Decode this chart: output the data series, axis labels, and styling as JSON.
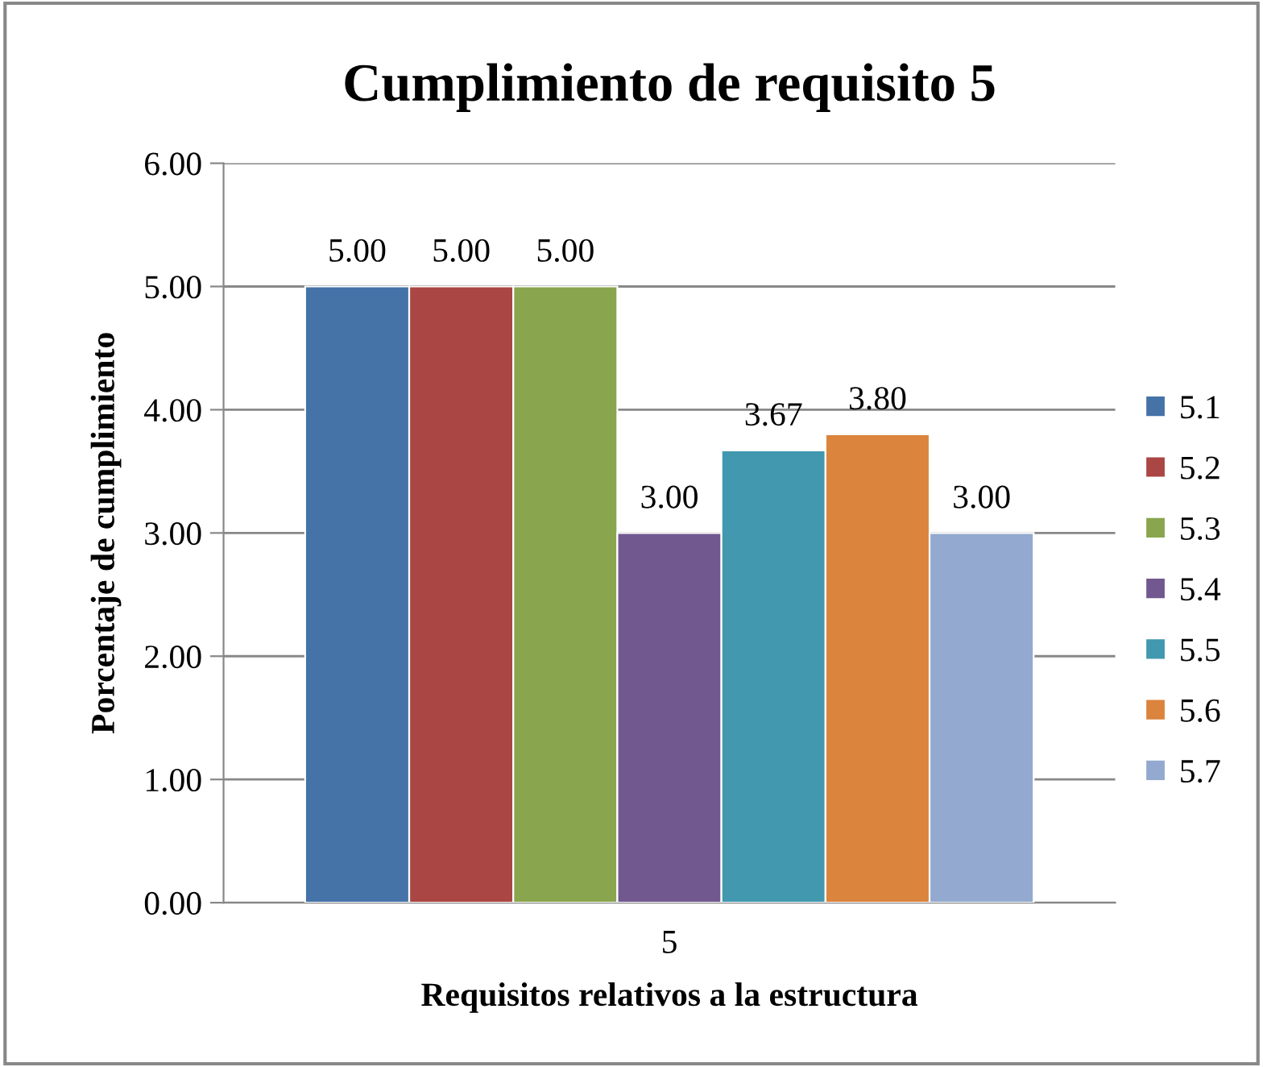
{
  "chart_data": {
    "type": "bar",
    "title": "Cumplimiento de requisito 5",
    "xlabel": "Requisitos relativos a la estructura",
    "ylabel": "Porcentaje de cumplimiento",
    "categories": [
      "5"
    ],
    "series": [
      {
        "name": "5.1",
        "color": "#4572a7",
        "values": [
          5.0
        ],
        "value_labels": [
          "5.00"
        ]
      },
      {
        "name": "5.2",
        "color": "#aa4643",
        "values": [
          5.0
        ],
        "value_labels": [
          "5.00"
        ]
      },
      {
        "name": "5.3",
        "color": "#89a54e",
        "values": [
          5.0
        ],
        "value_labels": [
          "5.00"
        ]
      },
      {
        "name": "5.4",
        "color": "#71588f",
        "values": [
          3.0
        ],
        "value_labels": [
          "3.00"
        ]
      },
      {
        "name": "5.5",
        "color": "#4198af",
        "values": [
          3.67
        ],
        "value_labels": [
          "3.67"
        ]
      },
      {
        "name": "5.6",
        "color": "#db843d",
        "values": [
          3.8
        ],
        "value_labels": [
          "3.80"
        ]
      },
      {
        "name": "5.7",
        "color": "#93a9cf",
        "values": [
          3.0
        ],
        "value_labels": [
          "3.00"
        ]
      }
    ],
    "ylim": [
      0,
      6
    ],
    "yticks": [
      {
        "value": 0,
        "label": "0.00"
      },
      {
        "value": 1,
        "label": "1.00"
      },
      {
        "value": 2,
        "label": "2.00"
      },
      {
        "value": 3,
        "label": "3.00"
      },
      {
        "value": 4,
        "label": "4.00"
      },
      {
        "value": 5,
        "label": "5.00"
      },
      {
        "value": 6,
        "label": "6.00"
      }
    ],
    "grid": "y",
    "legend": "right"
  }
}
